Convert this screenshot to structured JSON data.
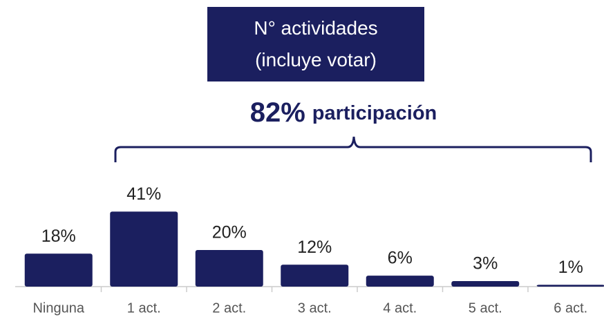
{
  "chart_data": {
    "type": "bar",
    "title": "N° actividades (incluye votar)",
    "annotation": {
      "figure": "82%",
      "text": "participación"
    },
    "categories": [
      "Ninguna",
      "1 act.",
      "2 act.",
      "3 act.",
      "4 act.",
      "5 act.",
      "6 act."
    ],
    "values": [
      18,
      41,
      20,
      12,
      6,
      3,
      1
    ],
    "value_labels": [
      "18%",
      "41%",
      "20%",
      "12%",
      "6%",
      "3%",
      "1%"
    ],
    "color": "#1b1f5f"
  }
}
